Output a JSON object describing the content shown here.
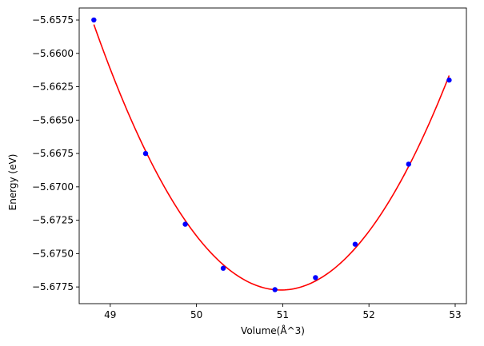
{
  "chart_data": {
    "type": "scatter",
    "title": "",
    "xlabel": "Volume(Å^3)",
    "ylabel": "Energy (eV)",
    "xlim": [
      48.64,
      53.13
    ],
    "ylim": [
      -5.67875,
      -5.6566
    ],
    "x_ticks": [
      49,
      50,
      51,
      52,
      53
    ],
    "x_tick_labels": [
      "49",
      "50",
      "51",
      "52",
      "53"
    ],
    "y_ticks": [
      -5.6775,
      -5.675,
      -5.6725,
      -5.67,
      -5.6675,
      -5.665,
      -5.6625,
      -5.66,
      -5.6575
    ],
    "y_tick_labels": [
      "−5.6775",
      "−5.6750",
      "−5.6725",
      "−5.6700",
      "−5.6675",
      "−5.6650",
      "−5.6625",
      "−5.6600",
      "−5.6575"
    ],
    "grid": false,
    "legend": "none",
    "series": [
      {
        "kind": "points",
        "color": "#0000ff",
        "x": [
          48.81,
          49.41,
          49.87,
          50.31,
          50.91,
          51.38,
          51.84,
          52.46,
          52.93
        ],
        "y": [
          -5.6575,
          -5.6675,
          -5.6728,
          -5.6761,
          -5.6777,
          -5.6768,
          -5.6743,
          -5.6683,
          -5.662
        ]
      },
      {
        "kind": "fit-curve",
        "color": "#ff0000",
        "x": [
          48.81,
          49.41,
          49.87,
          50.31,
          50.91,
          51.38,
          51.84,
          52.46,
          52.93
        ],
        "y": [
          -5.6575,
          -5.6675,
          -5.6728,
          -5.6761,
          -5.6777,
          -5.6768,
          -5.6743,
          -5.6683,
          -5.662
        ]
      }
    ]
  }
}
